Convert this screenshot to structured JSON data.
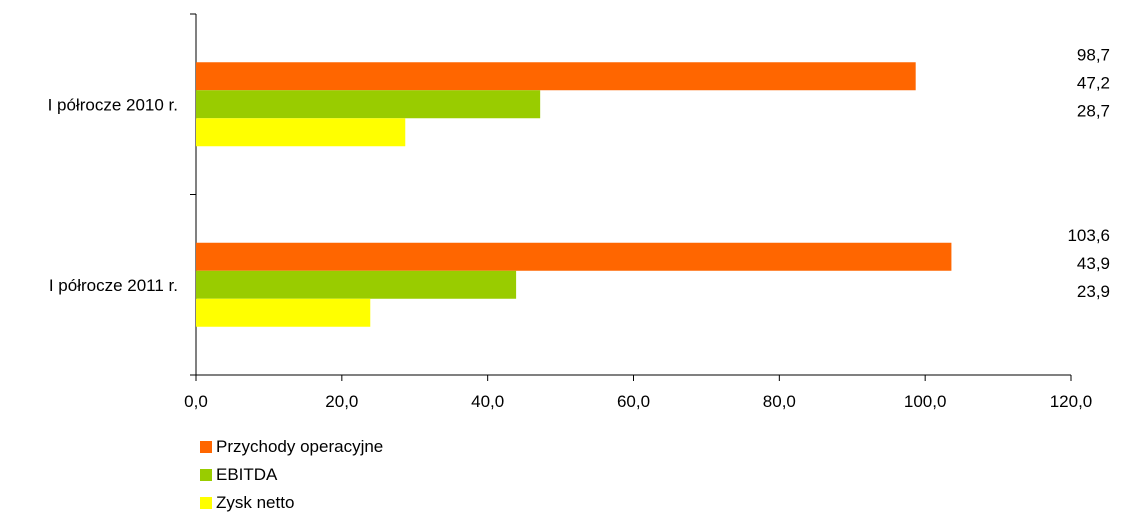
{
  "chart_data": {
    "type": "bar",
    "orientation": "horizontal",
    "categories": [
      "I półrocze 2010 r.",
      "I półrocze 2011 r."
    ],
    "series": [
      {
        "name": "Przychody operacyjne",
        "color": "#FF6600",
        "values": [
          98.7,
          103.6
        ],
        "labels": [
          "98,7",
          "103,6"
        ]
      },
      {
        "name": "EBITDA",
        "color": "#99CC00",
        "values": [
          47.2,
          43.9
        ],
        "labels": [
          "47,2",
          "43,9"
        ]
      },
      {
        "name": "Zysk netto",
        "color": "#FFFF00",
        "values": [
          28.7,
          23.9
        ],
        "labels": [
          "28,7",
          "23,9"
        ]
      }
    ],
    "xlim": [
      0,
      120
    ],
    "xticks": [
      0,
      20,
      40,
      60,
      80,
      100,
      120
    ],
    "xtick_labels": [
      "0,0",
      "20,0",
      "40,0",
      "60,0",
      "80,0",
      "100,0",
      "120,0"
    ],
    "grid": false,
    "legend_position": "bottom-left"
  }
}
